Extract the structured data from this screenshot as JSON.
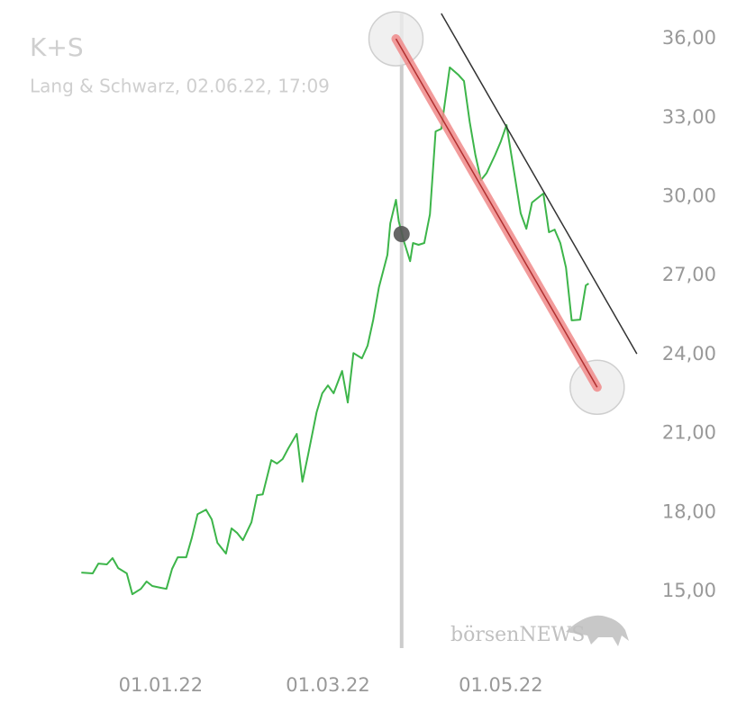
{
  "chart_data": {
    "type": "line",
    "title": "K+S",
    "subtitle": "Lang & Schwarz, 02.06.22, 17:09",
    "watermark": "börsenNEWS",
    "color": "#3db54a",
    "x": [
      "2021-12-04",
      "2021-12-08",
      "2021-12-10",
      "2021-12-13",
      "2021-12-15",
      "2021-12-17",
      "2021-12-20",
      "2021-12-22",
      "2021-12-25",
      "2021-12-27",
      "2021-12-29",
      "2022-01-01",
      "2022-01-03",
      "2022-01-05",
      "2022-01-07",
      "2022-01-10",
      "2022-01-12",
      "2022-01-14",
      "2022-01-17",
      "2022-01-19",
      "2022-01-21",
      "2022-01-24",
      "2022-01-26",
      "2022-01-28",
      "2022-01-30",
      "2022-02-02",
      "2022-02-04",
      "2022-02-06",
      "2022-02-09",
      "2022-02-11",
      "2022-02-13",
      "2022-02-15",
      "2022-02-18",
      "2022-02-20",
      "2022-02-22",
      "2022-02-25",
      "2022-02-27",
      "2022-03-01",
      "2022-03-03",
      "2022-03-06",
      "2022-03-08",
      "2022-03-10",
      "2022-03-13",
      "2022-03-15",
      "2022-03-17",
      "2022-03-19",
      "2022-03-22",
      "2022-03-23",
      "2022-03-25",
      "2022-03-26",
      "2022-03-28",
      "2022-03-30",
      "2022-03-31",
      "2022-04-02",
      "2022-04-04",
      "2022-04-06",
      "2022-04-08",
      "2022-04-10",
      "2022-04-13",
      "2022-04-16",
      "2022-04-18",
      "2022-04-20",
      "2022-04-22",
      "2022-04-24",
      "2022-04-26",
      "2022-04-29",
      "2022-05-01",
      "2022-05-03",
      "2022-05-06",
      "2022-05-08",
      "2022-05-10",
      "2022-05-12",
      "2022-05-16",
      "2022-05-18",
      "2022-05-20",
      "2022-05-22",
      "2022-05-24",
      "2022-05-26",
      "2022-05-29",
      "2022-05-31",
      "2022-06-01"
    ],
    "values": [
      15.72,
      15.69,
      16.06,
      16.03,
      16.27,
      15.89,
      15.69,
      14.9,
      15.1,
      15.38,
      15.21,
      15.14,
      15.1,
      15.86,
      16.3,
      16.3,
      17.05,
      17.94,
      18.11,
      17.74,
      16.85,
      16.44,
      17.4,
      17.22,
      16.95,
      17.63,
      18.66,
      18.69,
      19.99,
      19.86,
      20.03,
      20.44,
      20.99,
      19.17,
      20.2,
      21.81,
      22.53,
      22.83,
      22.53,
      23.38,
      22.18,
      24.06,
      23.86,
      24.34,
      25.33,
      26.56,
      27.79,
      28.99,
      29.88,
      29.06,
      28.24,
      27.55,
      28.24,
      28.17,
      28.24,
      29.33,
      32.48,
      32.58,
      34.91,
      34.63,
      34.39,
      32.85,
      31.59,
      30.63,
      30.9,
      31.59,
      32.1,
      32.72,
      30.73,
      29.37,
      28.78,
      29.78,
      30.12,
      28.65,
      28.75,
      28.24,
      27.31,
      25.3,
      25.33,
      26.63,
      26.7
    ],
    "xlim": [
      "2021-11-18",
      "2022-06-19"
    ],
    "ylim": [
      12.85,
      36.96
    ],
    "xticks": [
      {
        "value": "2022-01-01",
        "label": "01.01.22"
      },
      {
        "value": "2022-03-01",
        "label": "01.03.22"
      },
      {
        "value": "2022-05-01",
        "label": "01.05.22"
      }
    ],
    "yticks": [
      {
        "value": 15,
        "label": "15,00"
      },
      {
        "value": 18,
        "label": "18,00"
      },
      {
        "value": 21,
        "label": "21,00"
      },
      {
        "value": 24,
        "label": "24,00"
      },
      {
        "value": 27,
        "label": "27,00"
      },
      {
        "value": 30,
        "label": "30,00"
      },
      {
        "value": 33,
        "label": "33,00"
      },
      {
        "value": 36,
        "label": "36,00"
      }
    ],
    "crosshair": {
      "x": "2022-03-27",
      "value": 28.58
    },
    "trendlines": [
      {
        "color": "#333333",
        "points": [
          {
            "x": "2022-04-10",
            "value": 36.96
          },
          {
            "x": "2022-06-18",
            "value": 24.03
          }
        ]
      },
      {
        "color": "#f08a8a",
        "points": [
          {
            "x": "2022-03-25",
            "value": 36.0
          },
          {
            "x": "2022-06-04",
            "value": 22.76
          }
        ]
      }
    ]
  }
}
